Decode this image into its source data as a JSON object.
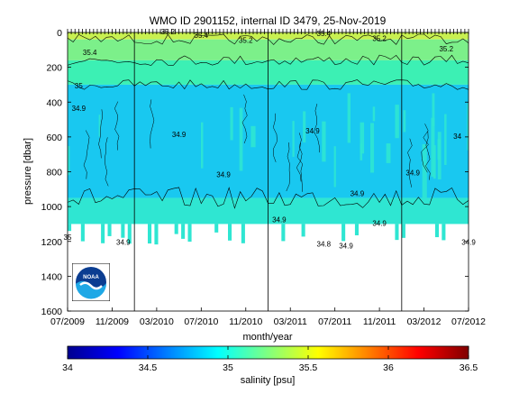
{
  "chart_data": {
    "type": "heatmap",
    "title": "WMO ID 2901152, internal ID 3479, 25-Nov-2019",
    "xlabel": "month/year",
    "ylabel": "pressure [dbar]",
    "x_ticks": [
      "07/2009",
      "11/2009",
      "03/2010",
      "07/2010",
      "11/2010",
      "03/2011",
      "07/2011",
      "11/2011",
      "03/2012",
      "07/2012"
    ],
    "x_tick_dates": [
      "2009-07",
      "2009-11",
      "2010-03",
      "2010-07",
      "2010-11",
      "2011-03",
      "2011-07",
      "2011-11",
      "2012-03",
      "2012-07"
    ],
    "xlim": [
      "2009-07",
      "2012-07"
    ],
    "y_ticks": [
      0,
      200,
      400,
      600,
      800,
      1000,
      1200,
      1400,
      1600
    ],
    "ylim": [
      0,
      1600
    ],
    "y_reversed": true,
    "grid": false,
    "vertical_lines": [
      "2010-01",
      "2011-01",
      "2012-01"
    ],
    "profile_max_pressure": 1100,
    "salinity_bands": [
      {
        "pressure_min": 0,
        "pressure_max": 40,
        "salinity": 35.55,
        "color": "#c8f050"
      },
      {
        "pressure_min": 40,
        "pressure_max": 160,
        "salinity": 35.35,
        "color": "#7cf08a"
      },
      {
        "pressure_min": 160,
        "pressure_max": 300,
        "salinity": 35.15,
        "color": "#3cf0b4"
      },
      {
        "pressure_min": 300,
        "pressure_max": 950,
        "salinity": 34.95,
        "color": "#19c8f0"
      },
      {
        "pressure_min": 950,
        "pressure_max": 1100,
        "salinity": 35.0,
        "color": "#2fe6d2"
      }
    ],
    "contour_labels": [
      {
        "text": "35.4",
        "date": "2009-09",
        "pressure": 130
      },
      {
        "text": "35.2",
        "date": "2010-04",
        "pressure": 10
      },
      {
        "text": "35.4",
        "date": "2010-07",
        "pressure": 30
      },
      {
        "text": "35.2",
        "date": "2010-11",
        "pressure": 60
      },
      {
        "text": "35.4",
        "date": "2011-06",
        "pressure": 20
      },
      {
        "text": "35.2",
        "date": "2011-11",
        "pressure": 50
      },
      {
        "text": "35.2",
        "date": "2012-05",
        "pressure": 110
      },
      {
        "text": "35",
        "date": "2009-08",
        "pressure": 320
      },
      {
        "text": "34.9",
        "date": "2009-08",
        "pressure": 450
      },
      {
        "text": "34.9",
        "date": "2010-05",
        "pressure": 600
      },
      {
        "text": "34.9",
        "date": "2010-09",
        "pressure": 830
      },
      {
        "text": "34.9",
        "date": "2011-02",
        "pressure": 1090
      },
      {
        "text": "34.9",
        "date": "2011-05",
        "pressure": 580
      },
      {
        "text": "34.9",
        "date": "2011-09",
        "pressure": 940
      },
      {
        "text": "34.9",
        "date": "2012-02",
        "pressure": 820
      },
      {
        "text": "34",
        "date": "2012-06",
        "pressure": 610
      },
      {
        "text": "35",
        "date": "2009-07",
        "pressure": 1190
      },
      {
        "text": "34.9",
        "date": "2009-12",
        "pressure": 1220
      },
      {
        "text": "34.8",
        "date": "2011-06",
        "pressure": 1230
      },
      {
        "text": "34.9",
        "date": "2011-08",
        "pressure": 1240
      },
      {
        "text": "34.9",
        "date": "2011-11",
        "pressure": 1110
      },
      {
        "text": "34.9",
        "date": "2012-07",
        "pressure": 1220
      }
    ]
  },
  "colorbar": {
    "label": "salinity [psu]",
    "ticks": [
      "34",
      "34.5",
      "35",
      "35.5",
      "36",
      "36.5"
    ],
    "range": [
      34,
      36.5
    ],
    "colors": [
      "#00008f",
      "#0000ff",
      "#0080ff",
      "#00ffff",
      "#80ff80",
      "#ffff00",
      "#ff8000",
      "#ff0000",
      "#800000"
    ]
  },
  "logo": {
    "text": "NOAA",
    "color": "#0b3d91"
  }
}
